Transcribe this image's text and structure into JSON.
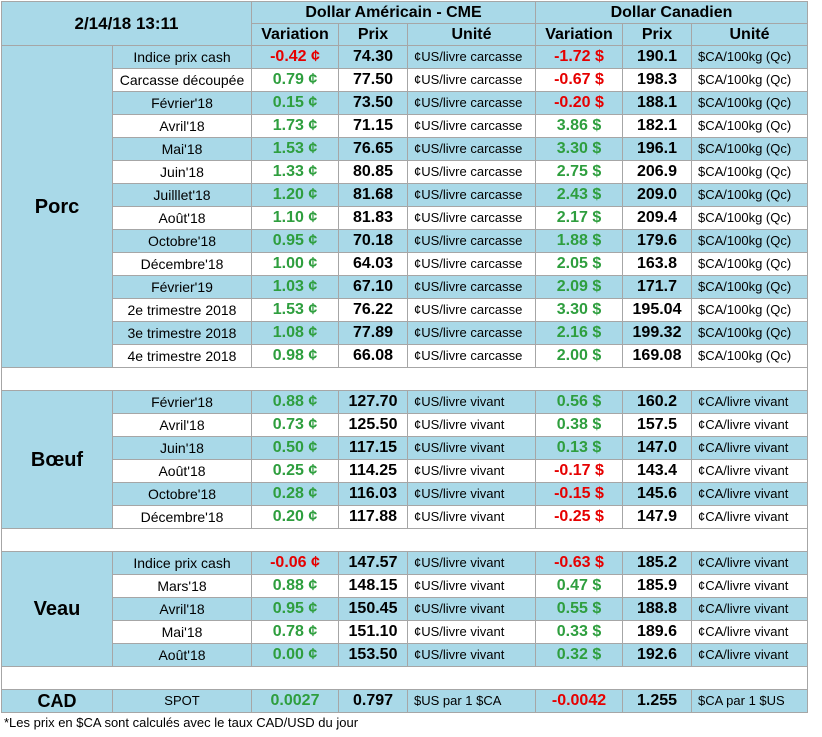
{
  "header": {
    "date": "2/14/18 13:11",
    "usd_group": "Dollar Américain - CME",
    "cad_group": "Dollar Canadien",
    "col_variation": "Variation",
    "col_prix": "Prix",
    "col_unite": "Unité"
  },
  "porc": {
    "label": "Porc",
    "rows": [
      {
        "label": "Indice prix cash",
        "us_var": "-0.42 ¢",
        "us_prix": "74.30",
        "us_unit": "¢US/livre carcasse",
        "ca_var": "-1.72 $",
        "ca_prix": "190.1",
        "ca_unit": "$CA/100kg (Qc)"
      },
      {
        "label": "Carcasse découpée",
        "us_var": "0.79 ¢",
        "us_prix": "77.50",
        "us_unit": "¢US/livre carcasse",
        "ca_var": "-0.67 $",
        "ca_prix": "198.3",
        "ca_unit": "$CA/100kg (Qc)"
      },
      {
        "label": "Février'18",
        "us_var": "0.15 ¢",
        "us_prix": "73.50",
        "us_unit": "¢US/livre carcasse",
        "ca_var": "-0.20 $",
        "ca_prix": "188.1",
        "ca_unit": "$CA/100kg (Qc)"
      },
      {
        "label": "Avril'18",
        "us_var": "1.73 ¢",
        "us_prix": "71.15",
        "us_unit": "¢US/livre carcasse",
        "ca_var": "3.86 $",
        "ca_prix": "182.1",
        "ca_unit": "$CA/100kg (Qc)"
      },
      {
        "label": "Mai'18",
        "us_var": "1.53 ¢",
        "us_prix": "76.65",
        "us_unit": "¢US/livre carcasse",
        "ca_var": "3.30 $",
        "ca_prix": "196.1",
        "ca_unit": "$CA/100kg (Qc)"
      },
      {
        "label": "Juin'18",
        "us_var": "1.33 ¢",
        "us_prix": "80.85",
        "us_unit": "¢US/livre carcasse",
        "ca_var": "2.75 $",
        "ca_prix": "206.9",
        "ca_unit": "$CA/100kg (Qc)"
      },
      {
        "label": "Juilllet'18",
        "us_var": "1.20 ¢",
        "us_prix": "81.68",
        "us_unit": "¢US/livre carcasse",
        "ca_var": "2.43 $",
        "ca_prix": "209.0",
        "ca_unit": "$CA/100kg (Qc)"
      },
      {
        "label": "Août'18",
        "us_var": "1.10 ¢",
        "us_prix": "81.83",
        "us_unit": "¢US/livre carcasse",
        "ca_var": "2.17 $",
        "ca_prix": "209.4",
        "ca_unit": "$CA/100kg (Qc)"
      },
      {
        "label": "Octobre'18",
        "us_var": "0.95 ¢",
        "us_prix": "70.18",
        "us_unit": "¢US/livre carcasse",
        "ca_var": "1.88 $",
        "ca_prix": "179.6",
        "ca_unit": "$CA/100kg (Qc)"
      },
      {
        "label": "Décembre'18",
        "us_var": "1.00 ¢",
        "us_prix": "64.03",
        "us_unit": "¢US/livre carcasse",
        "ca_var": "2.05 $",
        "ca_prix": "163.8",
        "ca_unit": "$CA/100kg (Qc)"
      },
      {
        "label": "Février'19",
        "us_var": "1.03 ¢",
        "us_prix": "67.10",
        "us_unit": "¢US/livre carcasse",
        "ca_var": "2.09 $",
        "ca_prix": "171.7",
        "ca_unit": "$CA/100kg (Qc)"
      },
      {
        "label": "2e trimestre 2018",
        "us_var": "1.53 ¢",
        "us_prix": "76.22",
        "us_unit": "¢US/livre carcasse",
        "ca_var": "3.30 $",
        "ca_prix": "195.04",
        "ca_unit": "$CA/100kg (Qc)"
      },
      {
        "label": "3e trimestre 2018",
        "us_var": "1.08 ¢",
        "us_prix": "77.89",
        "us_unit": "¢US/livre carcasse",
        "ca_var": "2.16 $",
        "ca_prix": "199.32",
        "ca_unit": "$CA/100kg (Qc)"
      },
      {
        "label": "4e trimestre 2018",
        "us_var": "0.98 ¢",
        "us_prix": "66.08",
        "us_unit": "¢US/livre carcasse",
        "ca_var": "2.00 $",
        "ca_prix": "169.08",
        "ca_unit": "$CA/100kg (Qc)"
      }
    ]
  },
  "boeuf": {
    "label": "Bœuf",
    "rows": [
      {
        "label": "Février'18",
        "us_var": "0.88 ¢",
        "us_prix": "127.70",
        "us_unit": "¢US/livre vivant",
        "ca_var": "0.56 $",
        "ca_prix": "160.2",
        "ca_unit": "¢CA/livre vivant"
      },
      {
        "label": "Avril'18",
        "us_var": "0.73 ¢",
        "us_prix": "125.50",
        "us_unit": "¢US/livre vivant",
        "ca_var": "0.38 $",
        "ca_prix": "157.5",
        "ca_unit": "¢CA/livre vivant"
      },
      {
        "label": "Juin'18",
        "us_var": "0.50 ¢",
        "us_prix": "117.15",
        "us_unit": "¢US/livre vivant",
        "ca_var": "0.13 $",
        "ca_prix": "147.0",
        "ca_unit": "¢CA/livre vivant"
      },
      {
        "label": "Août'18",
        "us_var": "0.25 ¢",
        "us_prix": "114.25",
        "us_unit": "¢US/livre vivant",
        "ca_var": "-0.17 $",
        "ca_prix": "143.4",
        "ca_unit": "¢CA/livre vivant"
      },
      {
        "label": "Octobre'18",
        "us_var": "0.28 ¢",
        "us_prix": "116.03",
        "us_unit": "¢US/livre vivant",
        "ca_var": "-0.15 $",
        "ca_prix": "145.6",
        "ca_unit": "¢CA/livre vivant"
      },
      {
        "label": "Décembre'18",
        "us_var": "0.20 ¢",
        "us_prix": "117.88",
        "us_unit": "¢US/livre vivant",
        "ca_var": "-0.25 $",
        "ca_prix": "147.9",
        "ca_unit": "¢CA/livre vivant"
      }
    ]
  },
  "veau": {
    "label": "Veau",
    "rows": [
      {
        "label": "Indice prix cash",
        "us_var": "-0.06 ¢",
        "us_prix": "147.57",
        "us_unit": "¢US/livre vivant",
        "ca_var": "-0.63 $",
        "ca_prix": "185.2",
        "ca_unit": "¢CA/livre vivant"
      },
      {
        "label": "Mars'18",
        "us_var": "0.88 ¢",
        "us_prix": "148.15",
        "us_unit": "¢US/livre vivant",
        "ca_var": "0.47 $",
        "ca_prix": "185.9",
        "ca_unit": "¢CA/livre vivant"
      },
      {
        "label": "Avril'18",
        "us_var": "0.95 ¢",
        "us_prix": "150.45",
        "us_unit": "¢US/livre vivant",
        "ca_var": "0.55 $",
        "ca_prix": "188.8",
        "ca_unit": "¢CA/livre vivant"
      },
      {
        "label": "Mai'18",
        "us_var": "0.78 ¢",
        "us_prix": "151.10",
        "us_unit": "¢US/livre vivant",
        "ca_var": "0.33 $",
        "ca_prix": "189.6",
        "ca_unit": "¢CA/livre vivant"
      },
      {
        "label": "Août'18",
        "us_var": "0.00 ¢",
        "us_prix": "153.50",
        "us_unit": "¢US/livre vivant",
        "ca_var": "0.32 $",
        "ca_prix": "192.6",
        "ca_unit": "¢CA/livre vivant"
      }
    ]
  },
  "cad": {
    "label": "CAD",
    "spot": "SPOT",
    "us_var": "0.0027",
    "us_prix": "0.797",
    "us_unit": "$US par 1 $CA",
    "ca_var": "-0.0042",
    "ca_prix": "1.255",
    "ca_unit": "$CA par 1 $US"
  },
  "footnote": "*Les  prix en $CA sont calculés avec le taux CAD/USD du jour",
  "colors": {
    "header_blue": "#a9d9e8",
    "positive": "#2e9e3e",
    "negative": "#e60000",
    "border": "#a6a6a6"
  }
}
